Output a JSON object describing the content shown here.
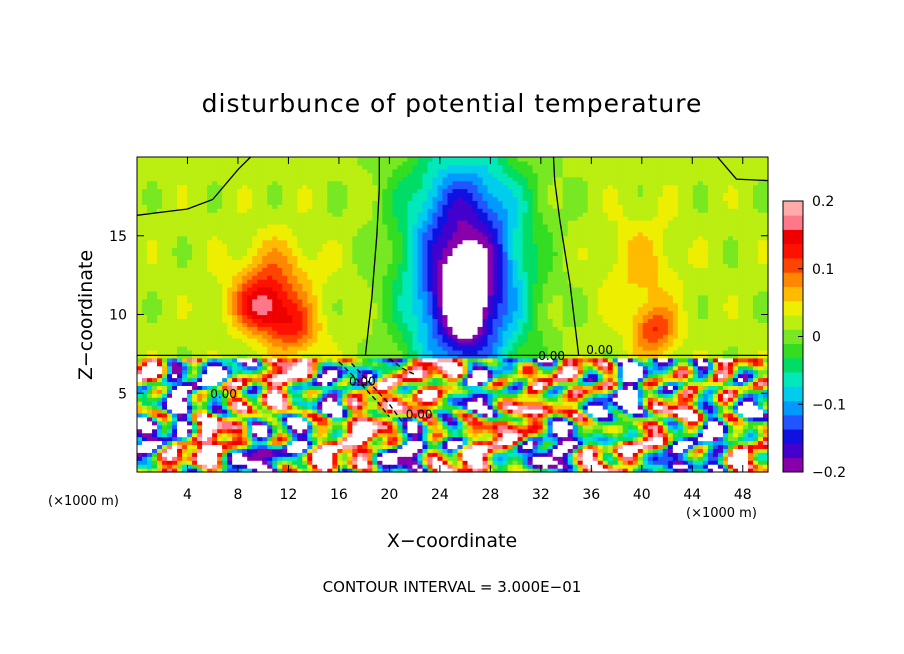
{
  "chart_data": {
    "type": "heatmap",
    "title": "disturbunce of potential temperature",
    "xlabel": "X−coordinate",
    "ylabel": "Z−coordinate",
    "x_unit_left": "(×1000 m)",
    "x_unit_right": "(×1000 m)",
    "xlim": [
      0,
      50
    ],
    "ylim": [
      0,
      20
    ],
    "x_ticks": [
      4,
      8,
      12,
      16,
      20,
      24,
      28,
      32,
      36,
      40,
      44,
      48
    ],
    "y_ticks": [
      5,
      10,
      15
    ],
    "colorbar": {
      "min": -0.2,
      "max": 0.2,
      "tick_values": [
        0.2,
        0.1,
        0,
        -0.1,
        -0.2
      ],
      "tick_labels": [
        "0.2",
        "0.1",
        "0",
        "−0.1",
        "−0.2"
      ],
      "colors": [
        "#8800aa",
        "#4400cc",
        "#1010e0",
        "#2255ff",
        "#0099ff",
        "#00ccee",
        "#00e8bb",
        "#00dd66",
        "#33dd22",
        "#77e822",
        "#bbee11",
        "#eeee00",
        "#ffbb00",
        "#ff8800",
        "#ff4400",
        "#ff1100",
        "#ee0000",
        "#ff7788",
        "#ffaaaa"
      ]
    },
    "contour_labels": [
      "0.00",
      "0.00",
      "0.00",
      "0.00",
      "0.00"
    ],
    "annotation": "CONTOUR INTERVAL = 3.000E−01",
    "grid": false,
    "legend_placement": "right"
  }
}
